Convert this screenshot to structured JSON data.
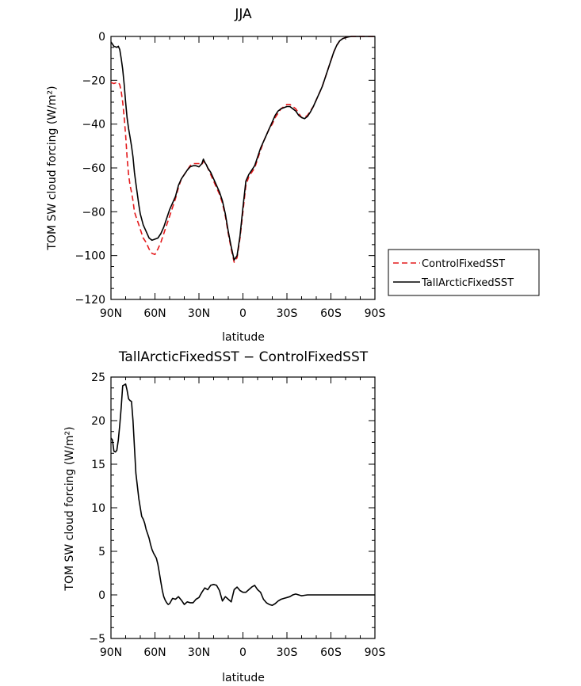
{
  "chart_data": [
    {
      "type": "line",
      "title": "JJA",
      "xlabel": "latitude",
      "ylabel": "TOM SW cloud forcing (W/m²)",
      "ylim": [
        -120,
        0
      ],
      "yticks": [
        0,
        -20,
        -40,
        -60,
        -80,
        -100,
        -120
      ],
      "ytick_labels": [
        "0",
        "−20",
        "−40",
        "−60",
        "−80",
        "−100",
        "−120"
      ],
      "xlim": [
        90,
        -90
      ],
      "xticks": [
        90,
        60,
        30,
        0,
        -30,
        -60,
        -90
      ],
      "xtick_labels": [
        "90N",
        "60N",
        "30N",
        "0",
        "30S",
        "60S",
        "90S"
      ],
      "legend_position": "right",
      "series": [
        {
          "name": "ControlFixedSST",
          "style": "dashed",
          "color": "#e41a1c",
          "x": [
            90,
            88,
            86,
            85,
            84,
            83,
            82,
            81,
            80,
            79,
            78,
            77,
            76,
            75,
            74,
            73,
            72,
            71,
            70,
            68,
            66,
            64,
            62,
            60,
            58,
            56,
            54,
            52,
            50,
            48,
            46,
            44,
            42,
            40,
            38,
            36,
            34,
            32,
            30,
            28,
            27,
            26,
            25,
            24,
            22,
            20,
            18,
            16,
            14,
            12,
            10,
            8,
            6,
            4,
            2,
            0,
            -2,
            -4,
            -6,
            -8,
            -10,
            -12,
            -14,
            -16,
            -18,
            -20,
            -22,
            -24,
            -26,
            -28,
            -30,
            -32,
            -34,
            -36,
            -38,
            -40,
            -42,
            -44,
            -46,
            -48,
            -50,
            -52,
            -54,
            -56,
            -58,
            -60,
            -62,
            -64,
            -66,
            -68,
            -70,
            -72,
            -74,
            -76,
            -78,
            -80,
            -85,
            -90
          ],
          "y": [
            -21,
            -21.5,
            -21,
            -21,
            -22,
            -25,
            -30,
            -37,
            -45,
            -55,
            -63,
            -68,
            -71,
            -75,
            -80,
            -82,
            -84,
            -86,
            -88,
            -92,
            -94,
            -97,
            -99,
            -99.5,
            -97,
            -94,
            -90,
            -86,
            -82,
            -78,
            -74,
            -69,
            -65,
            -63,
            -61,
            -59,
            -58,
            -58,
            -58,
            -58.5,
            -57,
            -57.5,
            -58.5,
            -60,
            -63,
            -66,
            -69,
            -72,
            -76,
            -82,
            -90,
            -97,
            -103,
            -101,
            -92,
            -80,
            -68,
            -64,
            -62,
            -60,
            -56,
            -52,
            -48,
            -45,
            -42,
            -40,
            -37,
            -35,
            -33,
            -32,
            -31,
            -31,
            -32,
            -33,
            -35,
            -37,
            -37,
            -36,
            -34,
            -32,
            -29,
            -26,
            -23,
            -19,
            -15,
            -11,
            -7,
            -4,
            -2,
            -1,
            -0.5,
            -0.2,
            0,
            0,
            0,
            0,
            0,
            0
          ]
        },
        {
          "name": "TallArcticFixedSST",
          "style": "solid",
          "color": "#000000",
          "x": [
            90,
            88,
            86,
            85,
            84,
            83,
            82,
            81,
            80,
            79,
            78,
            77,
            76,
            75,
            74,
            73,
            72,
            71,
            70,
            68,
            66,
            64,
            62,
            60,
            58,
            56,
            54,
            52,
            50,
            48,
            46,
            44,
            42,
            40,
            38,
            36,
            34,
            32,
            30,
            28,
            27,
            26,
            25,
            24,
            22,
            20,
            18,
            16,
            14,
            12,
            10,
            8,
            6,
            4,
            2,
            0,
            -2,
            -4,
            -6,
            -8,
            -10,
            -12,
            -14,
            -16,
            -18,
            -20,
            -22,
            -24,
            -26,
            -28,
            -30,
            -32,
            -34,
            -36,
            -38,
            -40,
            -42,
            -44,
            -46,
            -48,
            -50,
            -52,
            -54,
            -56,
            -58,
            -60,
            -62,
            -64,
            -66,
            -68,
            -70,
            -72,
            -74,
            -76,
            -78,
            -80,
            -85,
            -90
          ],
          "y": [
            -2.5,
            -4.5,
            -5,
            -4.5,
            -6,
            -10,
            -15,
            -22,
            -30,
            -37,
            -42,
            -46,
            -50,
            -55,
            -62,
            -67,
            -72,
            -77,
            -81,
            -86,
            -89,
            -92,
            -93,
            -92.5,
            -92,
            -90,
            -87,
            -83,
            -79,
            -76,
            -73,
            -68,
            -65,
            -63,
            -61,
            -59.5,
            -59,
            -59,
            -59.5,
            -58,
            -56,
            -57.5,
            -58.5,
            -60,
            -62,
            -65,
            -68,
            -71,
            -75,
            -81,
            -89,
            -96,
            -102,
            -100,
            -91,
            -78,
            -66,
            -63,
            -61,
            -59,
            -55,
            -51,
            -48,
            -45,
            -42,
            -39,
            -36,
            -34,
            -33,
            -32.5,
            -32,
            -32,
            -33,
            -34,
            -36,
            -37,
            -37.5,
            -36.5,
            -34.5,
            -32,
            -29,
            -26,
            -23,
            -19,
            -15,
            -11,
            -7,
            -4,
            -2,
            -1,
            -0.5,
            -0.2,
            0,
            0,
            0,
            0,
            0,
            0
          ]
        }
      ]
    },
    {
      "type": "line",
      "title": "TallArcticFixedSST − ControlFixedSST",
      "xlabel": "latitude",
      "ylabel": "TOM SW cloud forcing (W/m²)",
      "ylim": [
        -5,
        25
      ],
      "yticks": [
        25,
        20,
        15,
        10,
        5,
        0,
        -5
      ],
      "ytick_labels": [
        "25",
        "20",
        "15",
        "10",
        "5",
        "0",
        "−5"
      ],
      "xlim": [
        90,
        -90
      ],
      "xticks": [
        90,
        60,
        30,
        0,
        -30,
        -60,
        -90
      ],
      "xtick_labels": [
        "90N",
        "60N",
        "30N",
        "0",
        "30S",
        "60S",
        "90S"
      ],
      "series": [
        {
          "name": "TallArcticFixedSST − ControlFixedSST",
          "style": "solid",
          "color": "#000000",
          "x": [
            90,
            89,
            88,
            87,
            86,
            85,
            84,
            83,
            82,
            81,
            80,
            79,
            78,
            77,
            76,
            75,
            74,
            73,
            72,
            71,
            70,
            69,
            68,
            67,
            66,
            65,
            64,
            63,
            62,
            61,
            60,
            59,
            58,
            57,
            56,
            55,
            54,
            53,
            52,
            51,
            50,
            48,
            46,
            44,
            42,
            40,
            38,
            36,
            34,
            32,
            30,
            28,
            26,
            24,
            22,
            20,
            18,
            16,
            14,
            12,
            10,
            8,
            6,
            4,
            2,
            0,
            -2,
            -4,
            -6,
            -8,
            -10,
            -12,
            -14,
            -16,
            -18,
            -20,
            -22,
            -24,
            -26,
            -28,
            -30,
            -32,
            -34,
            -36,
            -38,
            -40,
            -42,
            -44,
            -46,
            -48,
            -50,
            -52,
            -55,
            -60,
            -65,
            -70,
            -75,
            -80,
            -85,
            -90
          ],
          "y": [
            18,
            17.8,
            16.5,
            16.4,
            16.6,
            17.8,
            19.5,
            21.5,
            24,
            24.1,
            24.2,
            23.5,
            22.5,
            22.3,
            22.2,
            20,
            17,
            14,
            12.5,
            11,
            10,
            9,
            8.7,
            8.2,
            7.5,
            7,
            6.5,
            5.8,
            5.2,
            4.8,
            4.5,
            4.2,
            3.5,
            2.5,
            1.5,
            0.5,
            -0.2,
            -0.6,
            -0.9,
            -1.1,
            -1,
            -0.4,
            -0.5,
            -0.2,
            -0.6,
            -1.1,
            -0.8,
            -0.9,
            -0.9,
            -0.5,
            -0.3,
            0.3,
            0.8,
            0.6,
            1.1,
            1.2,
            1.1,
            0.5,
            -0.7,
            -0.2,
            -0.5,
            -0.8,
            0.6,
            0.9,
            0.5,
            0.3,
            0.3,
            0.6,
            0.9,
            1.1,
            0.6,
            0.3,
            -0.5,
            -0.9,
            -1.1,
            -1.2,
            -1.0,
            -0.7,
            -0.5,
            -0.4,
            -0.3,
            -0.2,
            0,
            0.1,
            0,
            -0.1,
            -0.05,
            0,
            0,
            0,
            0,
            0,
            0,
            0,
            0,
            0,
            0,
            0,
            0,
            0
          ]
        }
      ]
    }
  ]
}
